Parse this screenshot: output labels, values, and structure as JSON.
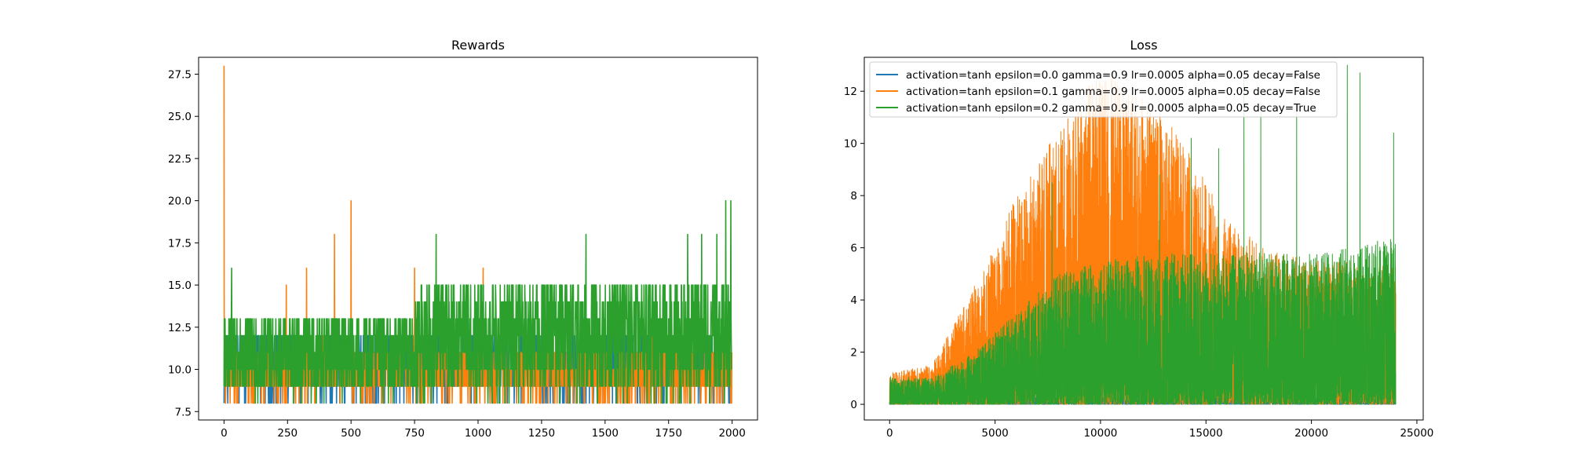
{
  "chart_data": [
    {
      "type": "line",
      "title": "Rewards",
      "xlabel": "",
      "ylabel": "",
      "xlim": [
        -100,
        2100
      ],
      "ylim": [
        7.0,
        28.5
      ],
      "xticks": [
        0,
        250,
        500,
        750,
        1000,
        1250,
        1500,
        1750,
        2000
      ],
      "xtick_labels": [
        "0",
        "250",
        "500",
        "750",
        "1000",
        "1250",
        "1500",
        "1750",
        "2000"
      ],
      "yticks": [
        7.5,
        10.0,
        12.5,
        15.0,
        17.5,
        20.0,
        22.5,
        25.0,
        27.5
      ],
      "ytick_labels": [
        "7.5",
        "10.0",
        "12.5",
        "15.0",
        "17.5",
        "20.0",
        "22.5",
        "25.0",
        "27.5"
      ],
      "grid": false,
      "series": [
        {
          "color": "#1f77b4",
          "n_points": 2000,
          "typical_range": [
            9,
            12
          ],
          "min": 8,
          "max": 12,
          "spikes": []
        },
        {
          "color": "#ff7f0e",
          "n_points": 2000,
          "typical_range": [
            9,
            11
          ],
          "min": 8,
          "max": 28,
          "spikes": [
            {
              "x": 0,
              "y": 28
            },
            {
              "x": 245,
              "y": 15
            },
            {
              "x": 325,
              "y": 16
            },
            {
              "x": 435,
              "y": 18
            },
            {
              "x": 500,
              "y": 20
            },
            {
              "x": 750,
              "y": 16
            },
            {
              "x": 1020,
              "y": 16
            }
          ]
        },
        {
          "color": "#2ca02c",
          "n_points": 2000,
          "early_range": [
            9,
            13
          ],
          "late_range": [
            9,
            15
          ],
          "min": 8,
          "max": 20,
          "spikes": [
            {
              "x": 30,
              "y": 16
            },
            {
              "x": 835,
              "y": 18
            },
            {
              "x": 1425,
              "y": 18
            },
            {
              "x": 1825,
              "y": 18
            },
            {
              "x": 1880,
              "y": 18
            },
            {
              "x": 1940,
              "y": 18
            },
            {
              "x": 1975,
              "y": 20
            },
            {
              "x": 1995,
              "y": 20
            }
          ]
        }
      ]
    },
    {
      "type": "line",
      "title": "Loss",
      "xlabel": "",
      "ylabel": "",
      "xlim": [
        -1200,
        25300
      ],
      "ylim": [
        -0.6,
        13.3
      ],
      "xticks": [
        0,
        5000,
        10000,
        15000,
        20000,
        25000
      ],
      "xtick_labels": [
        "0",
        "5000",
        "10000",
        "15000",
        "20000",
        "25000"
      ],
      "yticks": [
        0,
        2,
        4,
        6,
        8,
        10,
        12
      ],
      "ytick_labels": [
        "0",
        "2",
        "4",
        "6",
        "8",
        "10",
        "12"
      ],
      "grid": false,
      "legend_position": "top-left",
      "series": [
        {
          "name": "activation=tanh epsilon=0.0 gamma=0.9 lr=0.0005 alpha=0.05 decay=False",
          "color": "#1f77b4",
          "n_points": 24000,
          "envelope_x": [
            0,
            24000
          ],
          "envelope_max": [
            0.3,
            0.3
          ]
        },
        {
          "name": "activation=tanh epsilon=0.1 gamma=0.9 lr=0.0005 alpha=0.05 decay=False",
          "color": "#ff7f0e",
          "n_points": 24000,
          "envelope_x": [
            0,
            2000,
            4000,
            6000,
            8000,
            9500,
            11000,
            13000,
            14000,
            16000,
            18000,
            20000,
            24000
          ],
          "envelope_max": [
            1.2,
            1.5,
            4.5,
            8.0,
            10.5,
            12.5,
            12.5,
            11.0,
            10.0,
            7.0,
            6.0,
            5.5,
            5.5
          ]
        },
        {
          "name": "activation=tanh epsilon=0.2 gamma=0.9 lr=0.0005 alpha=0.05 decay=True",
          "color": "#2ca02c",
          "n_points": 24000,
          "envelope_x": [
            0,
            2000,
            4000,
            6000,
            8000,
            10000,
            12000,
            14000,
            16000,
            18000,
            20000,
            22000,
            24000
          ],
          "envelope_max": [
            1.1,
            1.0,
            2.0,
            3.5,
            5.0,
            5.5,
            5.7,
            5.8,
            5.8,
            5.8,
            5.8,
            6.0,
            6.5
          ],
          "spikes": [
            {
              "x": 7700,
              "y": 8.5
            },
            {
              "x": 12800,
              "y": 8.8
            },
            {
              "x": 14300,
              "y": 10.2
            },
            {
              "x": 15600,
              "y": 9.8
            },
            {
              "x": 16800,
              "y": 12.5
            },
            {
              "x": 17600,
              "y": 11.5
            },
            {
              "x": 19300,
              "y": 11.4
            },
            {
              "x": 21700,
              "y": 13.0
            },
            {
              "x": 22300,
              "y": 12.7
            },
            {
              "x": 23900,
              "y": 10.4
            }
          ]
        }
      ]
    }
  ]
}
